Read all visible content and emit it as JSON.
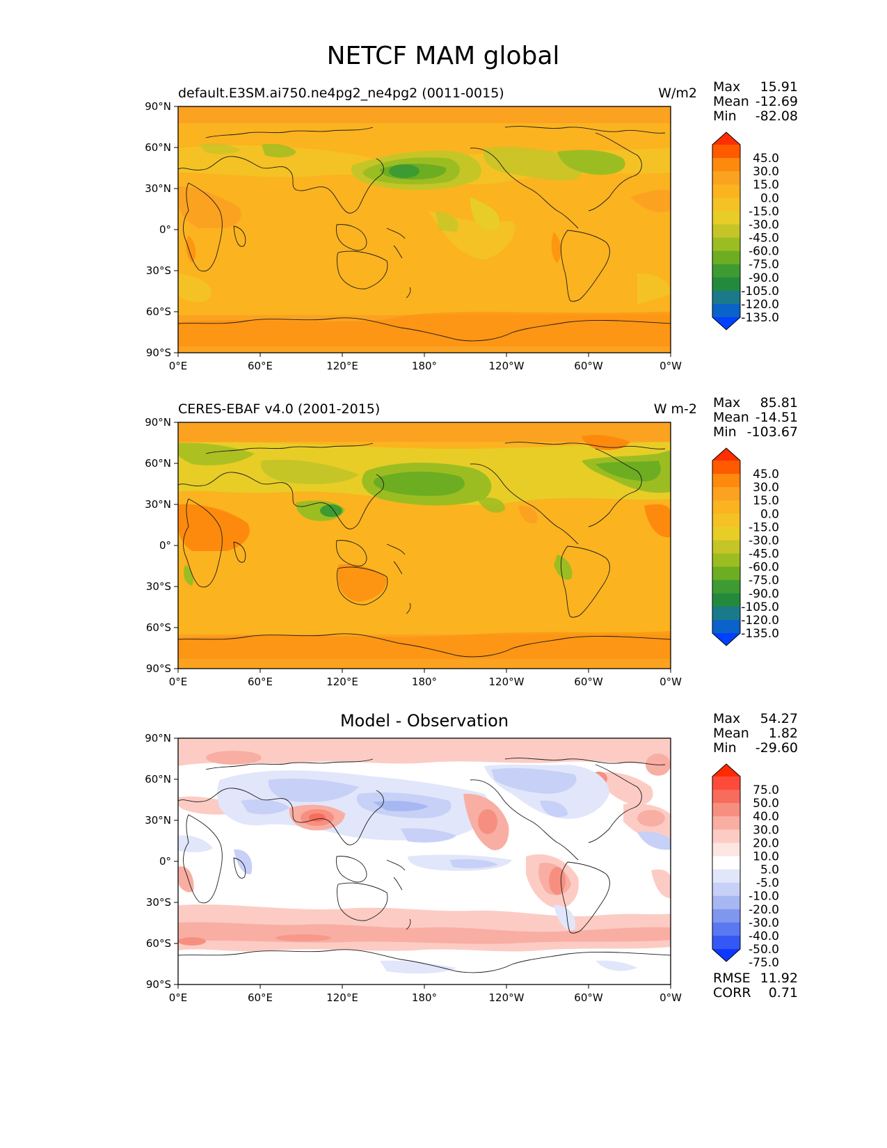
{
  "figure": {
    "title": "NETCF MAM global"
  },
  "panels": [
    {
      "id": "test",
      "left_title": "default.E3SM.ai750.ne4pg2_ne4pg2 (0011-0015)",
      "center_title": "",
      "units": "W/m2",
      "stats": [
        {
          "label": "Max",
          "value": "15.91"
        },
        {
          "label": "Mean",
          "value": "-12.69"
        },
        {
          "label": "Min",
          "value": "-82.08"
        }
      ],
      "colorbar": {
        "labels": [
          "45.0",
          "30.0",
          "15.0",
          "0.0",
          "-15.0",
          "-30.0",
          "-45.0",
          "-60.0",
          "-75.0",
          "-90.0",
          "-105.0",
          "-120.0",
          "-135.0"
        ],
        "colors": [
          "#fe2f00",
          "#fe5a00",
          "#fe8a0d",
          "#fca221",
          "#fbb320",
          "#f4c224",
          "#e8cd27",
          "#c5c528",
          "#9cbd22",
          "#6dad22",
          "#3e9b33",
          "#238a3d",
          "#1a7a8a",
          "#0b62c8",
          "#0040ff"
        ]
      }
    },
    {
      "id": "reference",
      "left_title": "CERES-EBAF v4.0 (2001-2015)",
      "center_title": "",
      "units": "W m-2",
      "stats": [
        {
          "label": "Max",
          "value": "85.81"
        },
        {
          "label": "Mean",
          "value": "-14.51"
        },
        {
          "label": "Min",
          "value": "-103.67"
        }
      ],
      "colorbar": {
        "labels": [
          "45.0",
          "30.0",
          "15.0",
          "0.0",
          "-15.0",
          "-30.0",
          "-45.0",
          "-60.0",
          "-75.0",
          "-90.0",
          "-105.0",
          "-120.0",
          "-135.0"
        ],
        "colors": [
          "#fe2f00",
          "#fe5a00",
          "#fe8a0d",
          "#fca221",
          "#fbb320",
          "#f4c224",
          "#e8cd27",
          "#c5c528",
          "#9cbd22",
          "#6dad22",
          "#3e9b33",
          "#238a3d",
          "#1a7a8a",
          "#0b62c8",
          "#0040ff"
        ]
      }
    },
    {
      "id": "diff",
      "left_title": "",
      "center_title": "Model - Observation",
      "units": "",
      "stats": [
        {
          "label": "Max",
          "value": "54.27"
        },
        {
          "label": "Mean",
          "value": "1.82"
        },
        {
          "label": "Min",
          "value": "-29.60"
        }
      ],
      "extra_stats": [
        {
          "label": "RMSE",
          "value": "11.92"
        },
        {
          "label": "CORR",
          "value": "0.71"
        }
      ],
      "colorbar": {
        "labels": [
          "75.0",
          "50.0",
          "40.0",
          "30.0",
          "20.0",
          "10.0",
          "5.0",
          "-5.0",
          "-10.0",
          "-20.0",
          "-30.0",
          "-40.0",
          "-50.0",
          "-75.0"
        ],
        "colors": [
          "#ff2a00",
          "#fe4a3a",
          "#f86c5c",
          "#f78f80",
          "#f9aea3",
          "#fcccc4",
          "#fde5e1",
          "#ffffff",
          "#e1e6fa",
          "#c7d0f6",
          "#a7b7f2",
          "#8097ee",
          "#5a78f0",
          "#3557f4",
          "#0e38ff"
        ]
      }
    }
  ],
  "axes": {
    "lon_ticks": [
      "0°E",
      "60°E",
      "120°E",
      "180°",
      "120°W",
      "60°W",
      "0°W"
    ],
    "lat_ticks": [
      "90°N",
      "60°N",
      "30°N",
      "0°",
      "30°S",
      "60°S",
      "90°S"
    ]
  }
}
